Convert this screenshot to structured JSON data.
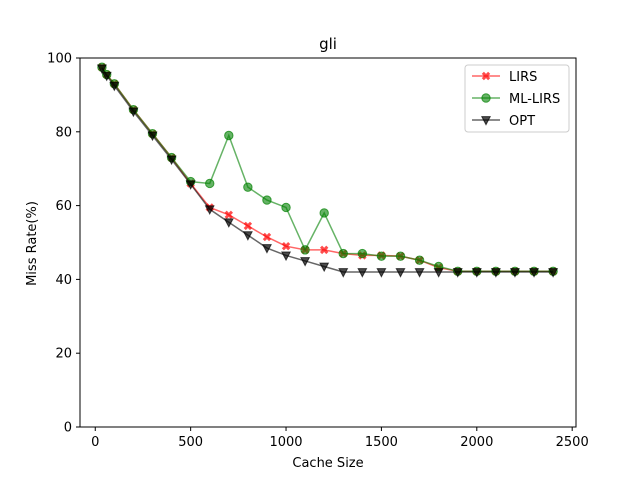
{
  "chart_data": {
    "type": "line",
    "title": "gli",
    "xlabel": "Cache Size",
    "ylabel": "Miss Rate(%)",
    "xlim": [
      -80,
      2520
    ],
    "ylim": [
      0,
      100
    ],
    "xticks": [
      0,
      500,
      1000,
      1500,
      2000,
      2500
    ],
    "yticks": [
      0,
      20,
      40,
      60,
      80,
      100
    ],
    "grid": false,
    "legend_position": "top-right",
    "series": [
      {
        "name": "LIRS",
        "color": "#ff0000",
        "marker": "x",
        "x": [
          35,
          60,
          100,
          200,
          300,
          400,
          500,
          600,
          700,
          800,
          900,
          1000,
          1100,
          1200,
          1300,
          1400,
          1500,
          1600,
          1700,
          1800,
          1900,
          2000,
          2100,
          2200,
          2300,
          2400
        ],
        "y": [
          97.5,
          95.5,
          93,
          86,
          79.5,
          73,
          66,
          59.5,
          57.5,
          54.5,
          51.5,
          49,
          48,
          48,
          47,
          46.5,
          46.5,
          46.3,
          45.2,
          43.2,
          42.2,
          42.2,
          42.2,
          42.2,
          42.2,
          42.2
        ]
      },
      {
        "name": "ML-LIRS",
        "color": "#008000",
        "marker": "o",
        "x": [
          35,
          60,
          100,
          200,
          300,
          400,
          500,
          600,
          700,
          800,
          900,
          1000,
          1100,
          1200,
          1300,
          1400,
          1500,
          1600,
          1700,
          1800,
          1900,
          2000,
          2100,
          2200,
          2300,
          2400
        ],
        "y": [
          97.5,
          95.5,
          93,
          86,
          79.5,
          73,
          66.5,
          66,
          79,
          65,
          61.5,
          59.5,
          48,
          58,
          47,
          47,
          46.3,
          46.3,
          45.2,
          43.5,
          42.2,
          42.2,
          42.2,
          42.2,
          42.2,
          42.2
        ]
      },
      {
        "name": "OPT",
        "color": "#000000",
        "marker": "v",
        "x": [
          35,
          60,
          100,
          200,
          300,
          400,
          500,
          600,
          700,
          800,
          900,
          1000,
          1100,
          1200,
          1300,
          1400,
          1500,
          1600,
          1700,
          1800,
          1900,
          2000,
          2100,
          2200,
          2300,
          2400
        ],
        "y": [
          97.2,
          95.2,
          92.5,
          85.5,
          79,
          72.5,
          65.8,
          59,
          55.5,
          52,
          48.5,
          46.5,
          45,
          43.5,
          42,
          42,
          42,
          42,
          42,
          42,
          42,
          42,
          42,
          42,
          42,
          42
        ]
      }
    ]
  }
}
